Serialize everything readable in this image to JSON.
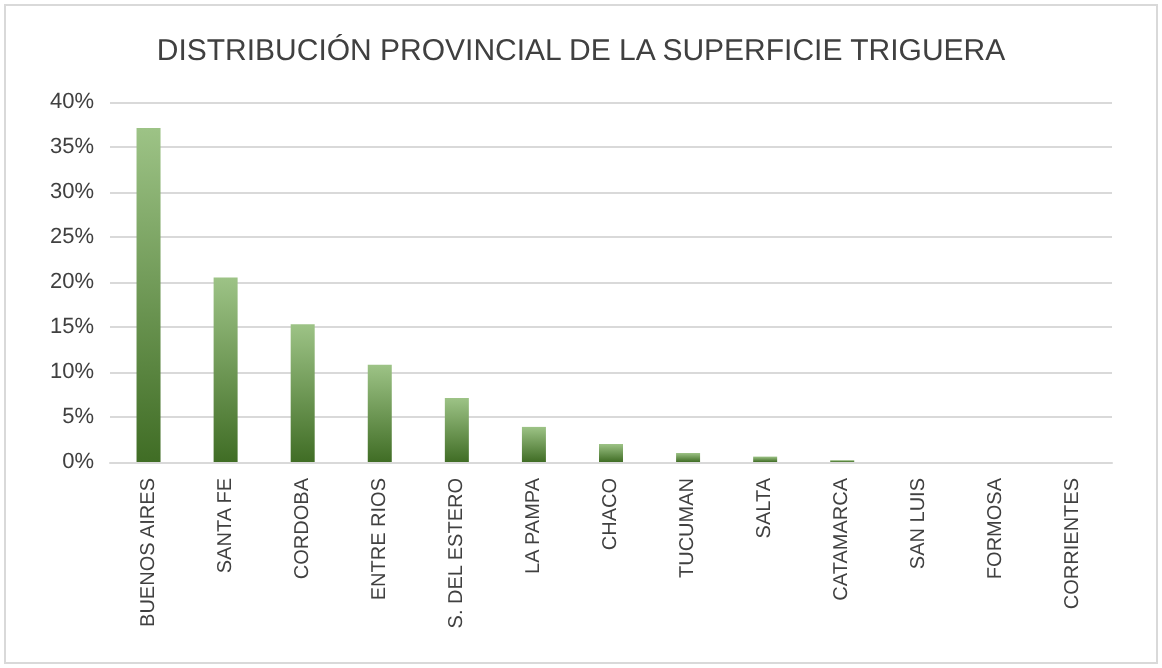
{
  "chart_data": {
    "type": "bar",
    "title": "DISTRIBUCIÓN PROVINCIAL DE LA SUPERFICIE TRIGUERA",
    "categories": [
      "BUENOS AIRES",
      "SANTA FE",
      "CORDOBA",
      "ENTRE RIOS",
      "S. DEL ESTERO",
      "LA PAMPA",
      "CHACO",
      "TUCUMAN",
      "SALTA",
      "CATAMARCA",
      "SAN LUIS",
      "FORMOSA",
      "CORRIENTES"
    ],
    "values": [
      37.1,
      20.5,
      15.3,
      10.8,
      7.1,
      3.9,
      2.0,
      1.0,
      0.6,
      0.2,
      0,
      0,
      0
    ],
    "color": "#5b9b35",
    "ylim": [
      0,
      40
    ],
    "yticks": [
      {
        "value": 0,
        "label": "0%"
      },
      {
        "value": 5,
        "label": "5%"
      },
      {
        "value": 10,
        "label": "10%"
      },
      {
        "value": 15,
        "label": "15%"
      },
      {
        "value": 20,
        "label": "20%"
      },
      {
        "value": 25,
        "label": "25%"
      },
      {
        "value": 30,
        "label": "30%"
      },
      {
        "value": 35,
        "label": "35%"
      },
      {
        "value": 40,
        "label": "40%"
      }
    ],
    "grid": "y"
  }
}
